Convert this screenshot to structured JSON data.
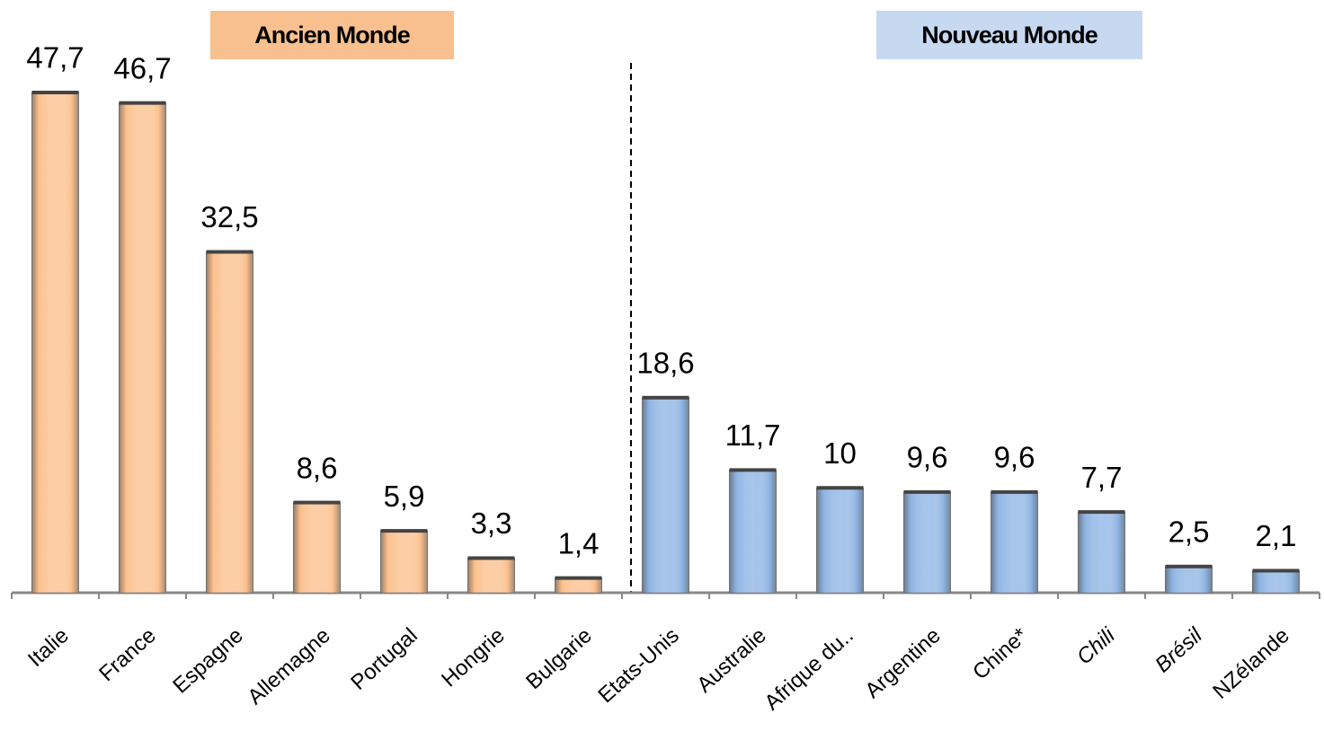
{
  "chart_data": {
    "type": "bar",
    "categories": [
      "Italie",
      "France",
      "Espagne",
      "Allemagne",
      "Portugal",
      "Hongrie",
      "Bulgarie",
      "Etats-Unis",
      "Australie",
      "Afrique du..",
      "Argentine",
      "Chine*",
      "Chili",
      "Brésil",
      "NZélande"
    ],
    "values": [
      47.7,
      46.7,
      32.5,
      8.6,
      5.9,
      3.3,
      1.4,
      18.6,
      11.7,
      10,
      9.6,
      9.6,
      7.7,
      2.5,
      2.1
    ],
    "value_labels": [
      "47,7",
      "46,7",
      "32,5",
      "8,6",
      "5,9",
      "3,3",
      "1,4",
      "18,6",
      "11,7",
      "10",
      "9,6",
      "9,6",
      "7,7",
      "2,5",
      "2,1"
    ],
    "colors": [
      "#fcc08c",
      "#fcc08c",
      "#fcc08c",
      "#fcc08c",
      "#fcc08c",
      "#fcc08c",
      "#fcc08c",
      "#8db4e3",
      "#8db4e3",
      "#8db4e3",
      "#8db4e3",
      "#8db4e3",
      "#8db4e3",
      "#8db4e3",
      "#8db4e3"
    ],
    "groups": [
      {
        "text": "Ancien Monde",
        "color": "#f9c08f"
      },
      {
        "text": "Nouveau Monde",
        "color": "#c6d9f1"
      }
    ]
  }
}
